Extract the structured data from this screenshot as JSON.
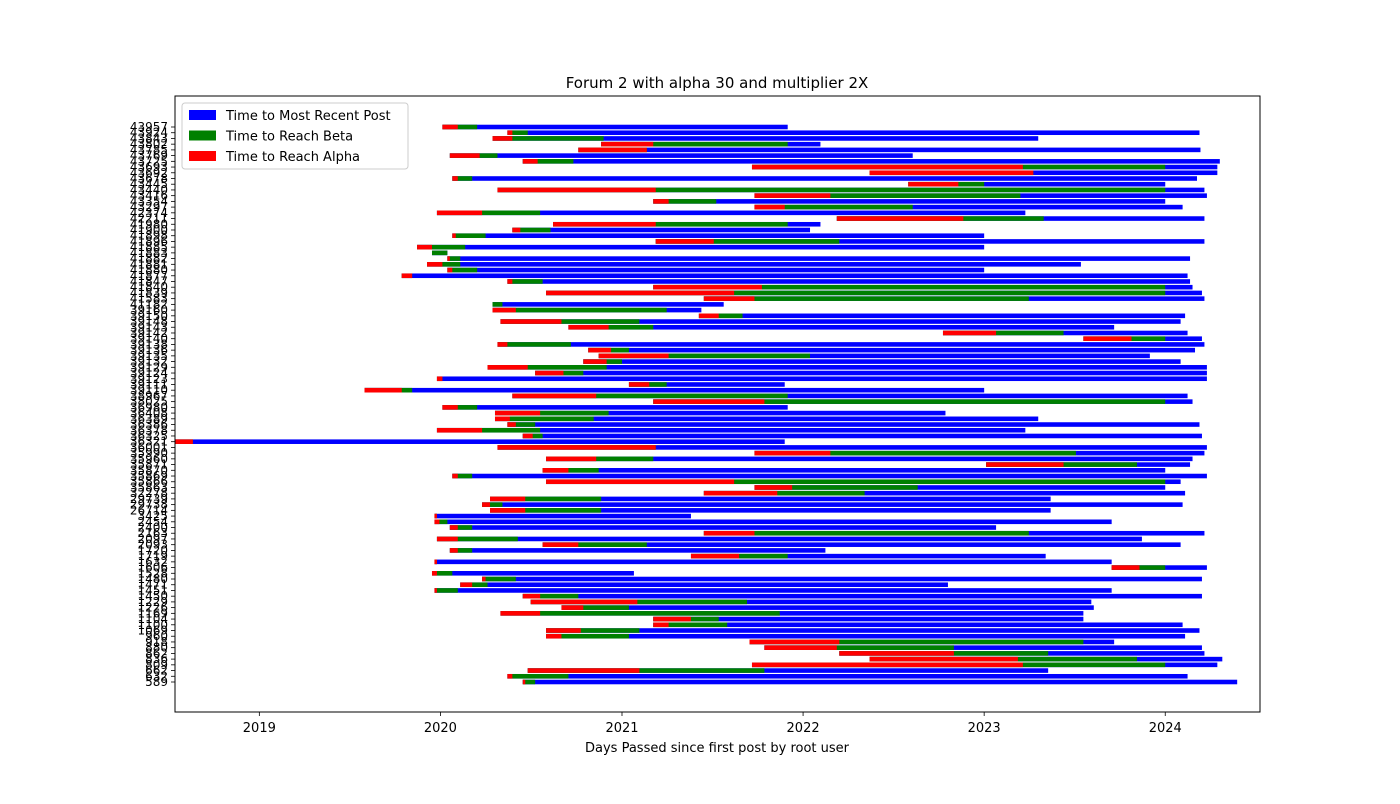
{
  "chart_data": {
    "type": "bar",
    "orientation": "horizontal",
    "title": "Forum 2 with alpha 30 and multiplier 2X",
    "xlabel": "Days Passed since first post by root user",
    "ylabel": "",
    "x_ticks": [
      "2019",
      "2020",
      "2021",
      "2022",
      "2023",
      "2024"
    ],
    "x_tick_values": [
      "2019-01-01",
      "2020-01-01",
      "2021-01-01",
      "2022-01-01",
      "2023-01-01",
      "2024-01-01"
    ],
    "xlim": [
      "2018-07-15",
      "2024-07-10"
    ],
    "legend": {
      "position": "top-left",
      "entries": [
        {
          "label": "Time to Most Recent Post",
          "color": "#0000ff"
        },
        {
          "label": "Time to Reach Beta",
          "color": "#008000"
        },
        {
          "label": "Time to Reach Alpha",
          "color": "#ff0000"
        }
      ]
    },
    "colors": {
      "recent": "#0000ff",
      "beta": "#008000",
      "alpha": "#ff0000"
    },
    "note_bars": "Each bar spans from the thread start date: red = start to alpha, green = start to beta, blue = start to most recent post. Dates are YYYY-MM-DD.",
    "rows": [
      {
        "id": "43957",
        "start": "2020-01-05",
        "alpha": "2020-02-05",
        "beta": "2020-03-15",
        "recent": "2021-12-01"
      },
      {
        "id": "43924",
        "start": "2020-05-15",
        "alpha": "2020-05-25",
        "beta": "2020-06-25",
        "recent": "2024-03-10"
      },
      {
        "id": "43843",
        "start": "2020-04-15",
        "alpha": "2020-05-25",
        "beta": "2020-11-25",
        "recent": "2023-04-20"
      },
      {
        "id": "43802",
        "start": "2020-11-20",
        "alpha": "2021-03-05",
        "beta": "2021-12-01",
        "recent": "2022-02-05"
      },
      {
        "id": "43785",
        "start": "2020-10-05",
        "alpha": "2021-02-20",
        "beta": "2021-02-20",
        "recent": "2024-03-12"
      },
      {
        "id": "43769",
        "start": "2020-01-20",
        "alpha": "2020-03-20",
        "beta": "2020-04-25",
        "recent": "2022-08-10"
      },
      {
        "id": "43725",
        "start": "2020-06-15",
        "alpha": "2020-07-15",
        "beta": "2020-09-25",
        "recent": "2024-04-20"
      },
      {
        "id": "43693",
        "start": "2021-09-20",
        "alpha": "2023-03-20",
        "beta": "2024-01-01",
        "recent": "2024-04-15"
      },
      {
        "id": "43692",
        "start": "2022-05-15",
        "alpha": "2023-04-10",
        "beta": "2023-04-10",
        "recent": "2024-04-15"
      },
      {
        "id": "43678",
        "start": "2020-01-25",
        "alpha": "2020-02-05",
        "beta": "2020-03-05",
        "recent": "2024-03-05"
      },
      {
        "id": "43445",
        "start": "2022-08-01",
        "alpha": "2022-11-10",
        "beta": "2023-01-01",
        "recent": "2024-01-01"
      },
      {
        "id": "43440",
        "start": "2020-04-25",
        "alpha": "2021-03-10",
        "beta": "2024-01-01",
        "recent": "2024-03-20"
      },
      {
        "id": "43416",
        "start": "2021-09-25",
        "alpha": "2022-02-25",
        "beta": "2023-03-15",
        "recent": "2024-03-25"
      },
      {
        "id": "43354",
        "start": "2021-03-05",
        "alpha": "2021-04-05",
        "beta": "2021-07-10",
        "recent": "2024-01-01"
      },
      {
        "id": "43297",
        "start": "2021-09-25",
        "alpha": "2021-11-25",
        "beta": "2022-08-10",
        "recent": "2024-02-05"
      },
      {
        "id": "42374",
        "start": "2019-12-25",
        "alpha": "2020-03-25",
        "beta": "2020-07-20",
        "recent": "2023-03-25"
      },
      {
        "id": "42211",
        "start": "2022-03-10",
        "alpha": "2022-11-20",
        "beta": "2023-05-01",
        "recent": "2024-03-20"
      },
      {
        "id": "41980",
        "start": "2020-08-15",
        "alpha": "2021-03-10",
        "beta": "2021-12-01",
        "recent": "2022-02-05"
      },
      {
        "id": "41900",
        "start": "2020-05-25",
        "alpha": "2020-06-10",
        "beta": "2020-08-10",
        "recent": "2022-01-15"
      },
      {
        "id": "41898",
        "start": "2020-01-25",
        "alpha": "2020-02-01",
        "beta": "2020-04-01",
        "recent": "2023-01-01"
      },
      {
        "id": "41896",
        "start": "2021-03-10",
        "alpha": "2021-07-05",
        "beta": "2022-03-15",
        "recent": "2024-03-20"
      },
      {
        "id": "41885",
        "start": "2019-11-15",
        "alpha": "2019-12-15",
        "beta": "2020-02-20",
        "recent": "2023-01-01"
      },
      {
        "id": "41883",
        "start": "2019-12-15",
        "alpha": "2019-12-15",
        "beta": "2020-01-15",
        "recent": "2020-01-15"
      },
      {
        "id": "41882",
        "start": "2020-01-15",
        "alpha": "2020-01-20",
        "beta": "2020-02-10",
        "recent": "2024-02-20"
      },
      {
        "id": "41881",
        "start": "2019-12-05",
        "alpha": "2020-01-05",
        "beta": "2020-02-10",
        "recent": "2023-07-15"
      },
      {
        "id": "41880",
        "start": "2020-01-15",
        "alpha": "2020-01-25",
        "beta": "2020-03-15",
        "recent": "2023-01-01"
      },
      {
        "id": "41877",
        "start": "2019-10-15",
        "alpha": "2019-11-05",
        "beta": "2019-11-05",
        "recent": "2024-02-15"
      },
      {
        "id": "41847",
        "start": "2020-05-15",
        "alpha": "2020-05-25",
        "beta": "2020-07-25",
        "recent": "2024-02-20"
      },
      {
        "id": "41840",
        "start": "2021-03-05",
        "alpha": "2021-10-10",
        "beta": "2024-01-01",
        "recent": "2024-02-25"
      },
      {
        "id": "41839",
        "start": "2020-08-01",
        "alpha": "2021-08-15",
        "beta": "2024-01-01",
        "recent": "2024-03-15"
      },
      {
        "id": "41583",
        "start": "2021-06-15",
        "alpha": "2021-09-25",
        "beta": "2023-04-01",
        "recent": "2024-03-20"
      },
      {
        "id": "41182",
        "start": "2020-04-15",
        "alpha": "2020-04-15",
        "beta": "2020-05-05",
        "recent": "2021-07-25"
      },
      {
        "id": "39160",
        "start": "2020-04-15",
        "alpha": "2020-06-01",
        "beta": "2021-04-01",
        "recent": "2021-06-10"
      },
      {
        "id": "39150",
        "start": "2021-06-05",
        "alpha": "2021-07-15",
        "beta": "2021-09-01",
        "recent": "2024-02-10"
      },
      {
        "id": "39148",
        "start": "2020-05-01",
        "alpha": "2020-09-01",
        "beta": "2021-02-05",
        "recent": "2024-02-01"
      },
      {
        "id": "39143",
        "start": "2020-09-15",
        "alpha": "2020-12-05",
        "beta": "2021-03-05",
        "recent": "2023-09-20"
      },
      {
        "id": "39142",
        "start": "2022-10-10",
        "alpha": "2023-01-25",
        "beta": "2023-06-10",
        "recent": "2024-02-15"
      },
      {
        "id": "39140",
        "start": "2023-07-20",
        "alpha": "2023-10-25",
        "beta": "2024-01-01",
        "recent": "2024-03-15"
      },
      {
        "id": "39138",
        "start": "2020-04-25",
        "alpha": "2020-05-15",
        "beta": "2020-09-20",
        "recent": "2024-03-20"
      },
      {
        "id": "39136",
        "start": "2020-10-25",
        "alpha": "2020-12-10",
        "beta": "2021-01-15",
        "recent": "2024-03-01"
      },
      {
        "id": "39135",
        "start": "2020-11-15",
        "alpha": "2021-04-05",
        "beta": "2022-01-15",
        "recent": "2023-12-01"
      },
      {
        "id": "39132",
        "start": "2020-10-15",
        "alpha": "2020-12-01",
        "beta": "2021-01-01",
        "recent": "2024-02-01"
      },
      {
        "id": "39129",
        "start": "2020-04-05",
        "alpha": "2020-06-25",
        "beta": "2020-12-01",
        "recent": "2024-03-25"
      },
      {
        "id": "39124",
        "start": "2020-07-10",
        "alpha": "2020-09-05",
        "beta": "2020-10-15",
        "recent": "2024-03-25"
      },
      {
        "id": "39123",
        "start": "2019-12-25",
        "alpha": "2020-01-05",
        "beta": "2020-01-05",
        "recent": "2024-03-25"
      },
      {
        "id": "39111",
        "start": "2021-01-15",
        "alpha": "2021-02-25",
        "beta": "2021-04-01",
        "recent": "2021-11-25"
      },
      {
        "id": "39110",
        "start": "2019-08-01",
        "alpha": "2019-10-15",
        "beta": "2019-11-05",
        "recent": "2023-01-01"
      },
      {
        "id": "38967",
        "start": "2020-05-25",
        "alpha": "2020-11-10",
        "beta": "2021-12-01",
        "recent": "2024-02-15"
      },
      {
        "id": "38025",
        "start": "2021-03-05",
        "alpha": "2021-10-15",
        "beta": "2024-01-01",
        "recent": "2024-02-25"
      },
      {
        "id": "36980",
        "start": "2020-01-05",
        "alpha": "2020-02-05",
        "beta": "2020-03-15",
        "recent": "2021-12-01"
      },
      {
        "id": "36408",
        "start": "2020-04-20",
        "alpha": "2020-07-20",
        "beta": "2020-12-05",
        "recent": "2022-10-15"
      },
      {
        "id": "36389",
        "start": "2020-04-20",
        "alpha": "2020-05-20",
        "beta": "2020-11-05",
        "recent": "2023-04-20"
      },
      {
        "id": "36386",
        "start": "2020-05-15",
        "alpha": "2020-06-01",
        "beta": "2020-07-10",
        "recent": "2024-03-10"
      },
      {
        "id": "36378",
        "start": "2019-12-25",
        "alpha": "2020-03-25",
        "beta": "2020-07-20",
        "recent": "2023-03-25"
      },
      {
        "id": "36325",
        "start": "2020-06-15",
        "alpha": "2020-07-05",
        "beta": "2020-07-25",
        "recent": "2024-03-15"
      },
      {
        "id": "36321",
        "start": "2018-07-15",
        "alpha": "2018-08-20",
        "beta": "2018-08-20",
        "recent": "2021-11-25"
      },
      {
        "id": "36001",
        "start": "2020-04-25",
        "alpha": "2021-03-10",
        "beta": "2021-03-10",
        "recent": "2024-03-25"
      },
      {
        "id": "35990",
        "start": "2021-09-25",
        "alpha": "2022-02-25",
        "beta": "2023-07-05",
        "recent": "2024-03-20"
      },
      {
        "id": "35960",
        "start": "2020-08-01",
        "alpha": "2020-11-10",
        "beta": "2021-03-05",
        "recent": "2024-02-25"
      },
      {
        "id": "35871",
        "start": "2023-01-05",
        "alpha": "2023-06-10",
        "beta": "2023-11-05",
        "recent": "2024-02-20"
      },
      {
        "id": "35870",
        "start": "2020-07-25",
        "alpha": "2020-09-15",
        "beta": "2020-11-15",
        "recent": "2024-01-01"
      },
      {
        "id": "35869",
        "start": "2020-01-25",
        "alpha": "2020-02-05",
        "beta": "2020-03-05",
        "recent": "2024-03-25"
      },
      {
        "id": "35866",
        "start": "2020-08-01",
        "alpha": "2021-08-15",
        "beta": "2024-01-01",
        "recent": "2024-02-01"
      },
      {
        "id": "35863",
        "start": "2021-09-25",
        "alpha": "2021-12-10",
        "beta": "2022-08-20",
        "recent": "2024-01-01"
      },
      {
        "id": "32278",
        "start": "2021-06-15",
        "alpha": "2021-11-10",
        "beta": "2022-05-05",
        "recent": "2024-02-10"
      },
      {
        "id": "29739",
        "start": "2020-04-10",
        "alpha": "2020-06-20",
        "beta": "2020-11-20",
        "recent": "2023-05-15"
      },
      {
        "id": "29738",
        "start": "2020-03-25",
        "alpha": "2020-04-10",
        "beta": "2020-05-05",
        "recent": "2024-02-05"
      },
      {
        "id": "26714",
        "start": "2020-04-10",
        "alpha": "2020-06-20",
        "beta": "2020-11-20",
        "recent": "2023-05-15"
      },
      {
        "id": "3425",
        "start": "2019-12-20",
        "alpha": "2019-12-25",
        "beta": "2019-12-25",
        "recent": "2021-05-20"
      },
      {
        "id": "2454",
        "start": "2019-12-20",
        "alpha": "2019-12-30",
        "beta": "2020-01-15",
        "recent": "2023-09-15"
      },
      {
        "id": "2400",
        "start": "2020-01-20",
        "alpha": "2020-02-05",
        "beta": "2020-03-05",
        "recent": "2023-01-25"
      },
      {
        "id": "2163",
        "start": "2021-06-15",
        "alpha": "2021-09-25",
        "beta": "2023-04-01",
        "recent": "2024-03-20"
      },
      {
        "id": "2097",
        "start": "2019-12-25",
        "alpha": "2020-02-05",
        "beta": "2020-06-05",
        "recent": "2023-11-15"
      },
      {
        "id": "2093",
        "start": "2020-07-25",
        "alpha": "2020-10-05",
        "beta": "2021-02-20",
        "recent": "2024-02-01"
      },
      {
        "id": "1720",
        "start": "2020-01-20",
        "alpha": "2020-02-05",
        "beta": "2020-03-05",
        "recent": "2022-02-15"
      },
      {
        "id": "1719",
        "start": "2021-05-20",
        "alpha": "2021-08-25",
        "beta": "2021-12-01",
        "recent": "2023-05-05"
      },
      {
        "id": "1632",
        "start": "2019-12-20",
        "alpha": "2019-12-25",
        "beta": "2019-12-25",
        "recent": "2023-09-15"
      },
      {
        "id": "1606",
        "start": "2023-09-15",
        "alpha": "2023-11-10",
        "beta": "2024-01-01",
        "recent": "2024-03-25"
      },
      {
        "id": "1528",
        "start": "2019-12-15",
        "alpha": "2019-12-25",
        "beta": "2020-01-25",
        "recent": "2021-01-25"
      },
      {
        "id": "1480",
        "start": "2020-03-25",
        "alpha": "2020-04-01",
        "beta": "2020-06-01",
        "recent": "2024-03-15"
      },
      {
        "id": "1471",
        "start": "2020-02-10",
        "alpha": "2020-03-05",
        "beta": "2020-04-05",
        "recent": "2022-10-20"
      },
      {
        "id": "1451",
        "start": "2019-12-20",
        "alpha": "2019-12-25",
        "beta": "2020-02-05",
        "recent": "2023-09-15"
      },
      {
        "id": "1450",
        "start": "2020-06-15",
        "alpha": "2020-07-20",
        "beta": "2020-10-05",
        "recent": "2024-03-15"
      },
      {
        "id": "1229",
        "start": "2020-07-01",
        "alpha": "2021-02-01",
        "beta": "2021-09-10",
        "recent": "2023-08-05"
      },
      {
        "id": "1226",
        "start": "2020-09-01",
        "alpha": "2020-10-15",
        "beta": "2021-01-15",
        "recent": "2023-08-10"
      },
      {
        "id": "1169",
        "start": "2020-05-01",
        "alpha": "2020-07-20",
        "beta": "2021-11-15",
        "recent": "2023-07-20"
      },
      {
        "id": "1104",
        "start": "2021-03-05",
        "alpha": "2021-05-20",
        "beta": "2021-07-15",
        "recent": "2023-07-20"
      },
      {
        "id": "1100",
        "start": "2021-03-05",
        "alpha": "2021-04-05",
        "beta": "2021-08-01",
        "recent": "2024-02-05"
      },
      {
        "id": "1069",
        "start": "2020-08-01",
        "alpha": "2020-10-10",
        "beta": "2021-02-05",
        "recent": "2024-03-10"
      },
      {
        "id": "960",
        "start": "2020-08-01",
        "alpha": "2020-09-01",
        "beta": "2021-01-15",
        "recent": "2024-02-10"
      },
      {
        "id": "918",
        "start": "2021-09-15",
        "alpha": "2022-03-15",
        "beta": "2023-07-20",
        "recent": "2023-09-20"
      },
      {
        "id": "880",
        "start": "2021-10-15",
        "alpha": "2022-03-10",
        "beta": "2022-11-01",
        "recent": "2024-03-15"
      },
      {
        "id": "862",
        "start": "2022-03-15",
        "alpha": "2022-11-01",
        "beta": "2023-05-10",
        "recent": "2024-03-20"
      },
      {
        "id": "836",
        "start": "2022-05-15",
        "alpha": "2023-03-10",
        "beta": "2023-11-05",
        "recent": "2024-04-25"
      },
      {
        "id": "809",
        "start": "2021-09-20",
        "alpha": "2023-03-20",
        "beta": "2024-01-01",
        "recent": "2024-04-15"
      },
      {
        "id": "662",
        "start": "2020-06-25",
        "alpha": "2021-02-05",
        "beta": "2021-10-15",
        "recent": "2023-05-10"
      },
      {
        "id": "632",
        "start": "2020-05-15",
        "alpha": "2020-05-25",
        "beta": "2020-09-15",
        "recent": "2024-02-15"
      },
      {
        "id": "589",
        "start": "2020-06-15",
        "alpha": "2020-06-20",
        "beta": "2020-07-10",
        "recent": "2024-05-25"
      }
    ]
  }
}
